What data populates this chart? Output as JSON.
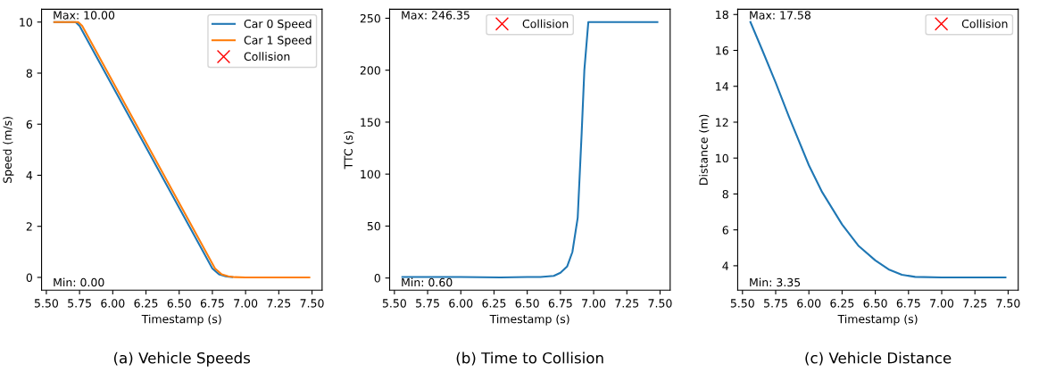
{
  "chart_data": [
    {
      "type": "line",
      "title": "(a) Vehicle Speeds",
      "xlabel": "Timestamp (s)",
      "ylabel": "Speed (m/s)",
      "series": [
        {
          "name": "Car 0 Speed",
          "color": "#1f77b4",
          "x": [
            5.56,
            5.72,
            5.75,
            6.75,
            6.8,
            6.85,
            6.9
          ],
          "values": [
            10,
            10,
            9.85,
            0.35,
            0.12,
            0.04,
            0.01
          ]
        },
        {
          "name": "Car 1 Speed",
          "color": "#ff7f0e",
          "x": [
            5.56,
            5.74,
            5.77,
            6.77,
            6.82,
            6.87,
            6.92,
            7.0,
            7.48
          ],
          "values": [
            10,
            10,
            9.85,
            0.35,
            0.12,
            0.04,
            0.01,
            0,
            0
          ]
        },
        {
          "name": "Collision",
          "type": "scatter",
          "color": "#ff0000",
          "marker": "cross"
        }
      ],
      "xlim": [
        5.464,
        7.576
      ],
      "ylim": [
        -0.5,
        10.5
      ],
      "xticks": [
        {
          "value": 5.5,
          "label": "5.50"
        },
        {
          "value": 5.75,
          "label": "5.75"
        },
        {
          "value": 6.0,
          "label": "6.00"
        },
        {
          "value": 6.25,
          "label": "6.25"
        },
        {
          "value": 6.5,
          "label": "6.50"
        },
        {
          "value": 6.75,
          "label": "6.75"
        },
        {
          "value": 7.0,
          "label": "7.00"
        },
        {
          "value": 7.25,
          "label": "7.25"
        },
        {
          "value": 7.5,
          "label": "7.50"
        }
      ],
      "yticks": [
        0,
        2,
        4,
        6,
        8,
        10
      ],
      "annotations": [
        "Max: 10.00",
        "Min: 0.00"
      ],
      "legend": "top right",
      "grid": false
    },
    {
      "type": "line",
      "title": "(b) Time to Collision",
      "xlabel": "Timestamp (s)",
      "ylabel": "TTC (s)",
      "series": [
        {
          "color": "#1f77b4",
          "x": [
            5.56,
            6.0,
            6.3,
            6.5,
            6.6,
            6.7,
            6.75,
            6.8,
            6.84,
            6.88,
            6.91,
            6.93,
            6.96,
            7.48
          ],
          "values": [
            1,
            1,
            0.6,
            1,
            1,
            2,
            5,
            11,
            25,
            58,
            140,
            200,
            246.35,
            246.35
          ]
        },
        {
          "name": "Collision",
          "type": "scatter",
          "color": "#ff0000",
          "marker": "cross"
        }
      ],
      "xlim": [
        5.464,
        7.576
      ],
      "ylim": [
        -11.7,
        258.6
      ],
      "xticks": [
        {
          "value": 5.5,
          "label": "5.50"
        },
        {
          "value": 5.75,
          "label": "5.75"
        },
        {
          "value": 6.0,
          "label": "6.00"
        },
        {
          "value": 6.25,
          "label": "6.25"
        },
        {
          "value": 6.5,
          "label": "6.50"
        },
        {
          "value": 6.75,
          "label": "6.75"
        },
        {
          "value": 7.0,
          "label": "7.00"
        },
        {
          "value": 7.25,
          "label": "7.25"
        },
        {
          "value": 7.5,
          "label": "7.50"
        }
      ],
      "yticks": [
        0,
        50,
        100,
        150,
        200,
        250
      ],
      "annotations": [
        "Max: 246.35",
        "Min: 0.60"
      ],
      "legend": "top",
      "grid": false
    },
    {
      "type": "line",
      "title": "(c) Vehicle Distance",
      "xlabel": "Timestamp (s)",
      "ylabel": "Distance (m)",
      "series": [
        {
          "color": "#1f77b4",
          "x": [
            5.56,
            5.65,
            5.75,
            5.85,
            6.0,
            6.1,
            6.25,
            6.375,
            6.5,
            6.6,
            6.7,
            6.8,
            7.0,
            7.48
          ],
          "values": [
            17.58,
            16.0,
            14.2,
            12.3,
            9.6,
            8.1,
            6.3,
            5.1,
            4.3,
            3.8,
            3.5,
            3.38,
            3.35,
            3.35
          ]
        },
        {
          "name": "Collision",
          "type": "scatter",
          "color": "#ff0000",
          "marker": "cross"
        }
      ],
      "xlim": [
        5.464,
        7.576
      ],
      "ylim": [
        2.64,
        18.29
      ],
      "xticks": [
        {
          "value": 5.5,
          "label": "5.50"
        },
        {
          "value": 5.75,
          "label": "5.75"
        },
        {
          "value": 6.0,
          "label": "6.00"
        },
        {
          "value": 6.25,
          "label": "6.25"
        },
        {
          "value": 6.5,
          "label": "6.50"
        },
        {
          "value": 6.75,
          "label": "6.75"
        },
        {
          "value": 7.0,
          "label": "7.00"
        },
        {
          "value": 7.25,
          "label": "7.25"
        },
        {
          "value": 7.5,
          "label": "7.50"
        }
      ],
      "yticks": [
        4,
        6,
        8,
        10,
        12,
        14,
        16,
        18
      ],
      "annotations": [
        "Max: 17.58",
        "Min: 3.35"
      ],
      "legend": "top right",
      "grid": false
    }
  ]
}
